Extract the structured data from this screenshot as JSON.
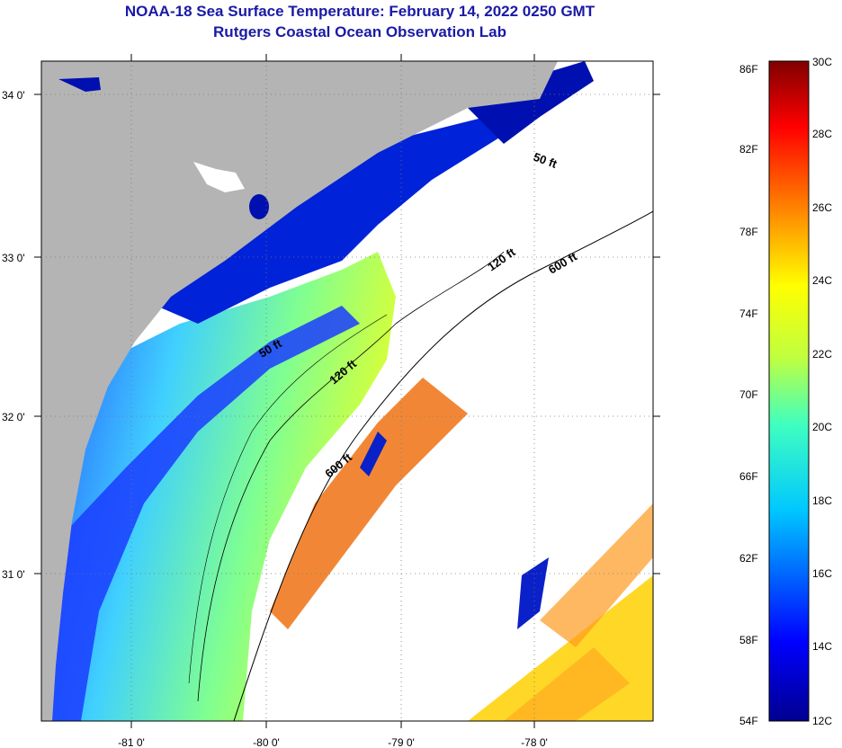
{
  "title": {
    "line1": "NOAA-18 Sea Surface Temperature:  February 14, 2022 0250 GMT",
    "line2": "Rutgers Coastal Ocean Observation Lab"
  },
  "axes": {
    "lat_labels": [
      "34 0'",
      "33 0'",
      "32 0'",
      "31 0'"
    ],
    "lon_labels": [
      "-81 0'",
      "-80 0'",
      "-79 0'",
      "-78 0'"
    ]
  },
  "contour_labels": [
    "50 ft",
    "120 ft",
    "600 ft",
    "50 ft",
    "120 ft",
    "600 ft"
  ],
  "colorbar": {
    "fahrenheit": [
      "86F",
      "82F",
      "78F",
      "74F",
      "70F",
      "66F",
      "62F",
      "58F",
      "54F"
    ],
    "celsius": [
      "30C",
      "28C",
      "26C",
      "24C",
      "22C",
      "20C",
      "18C",
      "16C",
      "14C",
      "12C"
    ]
  },
  "colors": {
    "land": "#b4b4b4",
    "cloud": "#ffffff",
    "title": "#1a1aa6"
  }
}
